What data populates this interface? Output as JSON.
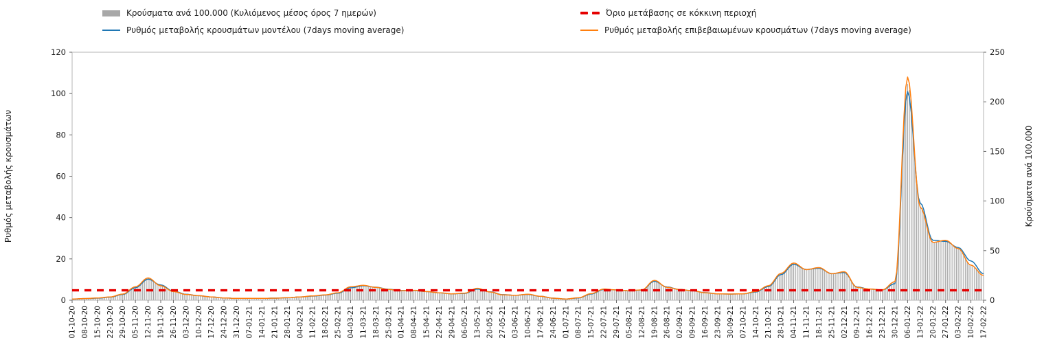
{
  "chart_data": {
    "type": "bar+line",
    "title": "",
    "legend_position": "top",
    "left_axis": {
      "label": "Ρυθμός μεταβολής κρουσμάτων",
      "min": 0,
      "max": 120,
      "ticks": [
        0,
        20,
        40,
        60,
        80,
        100,
        120
      ]
    },
    "right_axis": {
      "label": "Κρούσματα ανά 100.000",
      "min": 0,
      "max": 250,
      "ticks": [
        0,
        50,
        100,
        150,
        200,
        250
      ]
    },
    "threshold": {
      "label": "Όριο μετάβασης σε κόκκινη περιοχή",
      "axis": "right",
      "value": 10,
      "color": "#e50000",
      "style": "dashed"
    },
    "categories": [
      "01-10-20",
      "08-10-20",
      "15-10-20",
      "22-10-20",
      "29-10-20",
      "05-11-20",
      "12-11-20",
      "19-11-20",
      "26-11-20",
      "03-12-20",
      "10-12-20",
      "17-12-20",
      "24-12-20",
      "31-12-20",
      "07-01-21",
      "14-01-21",
      "21-01-21",
      "28-01-21",
      "04-02-21",
      "11-02-21",
      "18-02-21",
      "25-02-21",
      "04-03-21",
      "11-03-21",
      "18-03-21",
      "25-03-21",
      "01-04-21",
      "08-04-21",
      "15-04-21",
      "22-04-21",
      "29-04-21",
      "06-05-21",
      "13-05-21",
      "20-05-21",
      "27-05-21",
      "03-06-21",
      "10-06-21",
      "17-06-21",
      "24-06-21",
      "01-07-21",
      "08-07-21",
      "15-07-21",
      "22-07-21",
      "29-07-21",
      "05-08-21",
      "12-08-21",
      "19-08-21",
      "26-08-21",
      "02-09-21",
      "09-09-21",
      "16-09-21",
      "23-09-21",
      "30-09-21",
      "07-10-21",
      "14-10-21",
      "21-10-21",
      "28-10-21",
      "04-11-21",
      "11-11-21",
      "18-11-21",
      "25-11-21",
      "02-12-21",
      "09-12-21",
      "16-12-21",
      "23-12-21",
      "30-12-21",
      "06-01-22",
      "13-01-22",
      "20-01-22",
      "27-01-22",
      "03-02-22",
      "10-02-22",
      "17-02-22"
    ],
    "series": [
      {
        "name": "Κρούσματα ανά 100.000 (Κυλιόμενος μέσος όρος 7 ημερών)",
        "type": "bar",
        "axis": "right",
        "color": "#a8a8a8",
        "values": [
          1.3,
          1.7,
          2.3,
          3.3,
          6.3,
          13.5,
          22.5,
          14.6,
          8.8,
          5.8,
          4.6,
          3.3,
          2.3,
          1.9,
          1.9,
          1.9,
          2.1,
          2.5,
          3.3,
          4.4,
          5.4,
          7.5,
          13.5,
          15.0,
          12.9,
          10.8,
          9.6,
          10.0,
          8.8,
          7.5,
          6.5,
          7.1,
          12.1,
          8.3,
          5.4,
          5.0,
          6.0,
          4.0,
          2.1,
          1.3,
          2.5,
          6.7,
          11.3,
          10.4,
          9.6,
          10.4,
          20.0,
          12.9,
          10.8,
          9.6,
          7.5,
          6.5,
          6.3,
          6.5,
          8.8,
          14.6,
          27.1,
          37.5,
          30.8,
          32.9,
          26.7,
          28.8,
          12.9,
          11.3,
          10.4,
          18.8,
          218.0,
          94.0,
          58.3,
          60.4,
          52.1,
          35.4,
          25.0
        ]
      },
      {
        "name": "Ρυθμός μεταβολής κρουσμάτων μοντέλου (7days moving average)",
        "type": "line",
        "axis": "left",
        "color": "#1f77b4",
        "values": [
          0.5,
          0.8,
          1.0,
          1.5,
          2.8,
          6.0,
          10.2,
          7.4,
          4.4,
          2.9,
          2.2,
          1.6,
          1.1,
          0.9,
          0.9,
          0.9,
          1.0,
          1.2,
          1.6,
          2.0,
          2.5,
          3.4,
          6.0,
          7.0,
          6.3,
          5.3,
          4.7,
          4.7,
          4.2,
          3.6,
          3.1,
          3.3,
          5.4,
          4.1,
          2.7,
          2.4,
          2.8,
          1.9,
          1.0,
          0.6,
          1.1,
          3.0,
          5.2,
          5.0,
          4.6,
          4.9,
          9.2,
          6.4,
          5.2,
          4.6,
          3.7,
          3.1,
          3.0,
          3.1,
          4.0,
          6.6,
          12.4,
          17.4,
          14.9,
          15.5,
          12.9,
          13.4,
          6.4,
          5.4,
          5.0,
          8.0,
          101.0,
          47.0,
          29.0,
          28.5,
          25.5,
          19.0,
          12.8
        ]
      },
      {
        "name": "Ρυθμός μεταβολής επιβεβαιωμένων κρουσμάτων (7days moving average)",
        "type": "line",
        "axis": "left",
        "color": "#ff7f0e",
        "values": [
          0.6,
          0.8,
          1.1,
          1.6,
          3.0,
          6.5,
          10.8,
          7.0,
          4.2,
          2.8,
          2.2,
          1.6,
          1.1,
          0.9,
          0.9,
          0.9,
          1.0,
          1.2,
          1.6,
          2.1,
          2.6,
          3.6,
          6.5,
          7.2,
          6.2,
          5.2,
          4.6,
          4.8,
          4.2,
          3.6,
          3.1,
          3.4,
          5.8,
          4.0,
          2.6,
          2.4,
          2.9,
          1.9,
          1.0,
          0.6,
          1.2,
          3.2,
          5.4,
          5.0,
          4.6,
          5.0,
          9.6,
          6.2,
          5.2,
          4.6,
          3.6,
          3.1,
          3.0,
          3.1,
          4.2,
          7.0,
          13.0,
          18.0,
          14.8,
          15.8,
          12.8,
          13.8,
          6.2,
          5.4,
          5.0,
          9.0,
          108.0,
          45.0,
          28.0,
          29.0,
          25.0,
          17.0,
          12.0
        ]
      }
    ]
  }
}
